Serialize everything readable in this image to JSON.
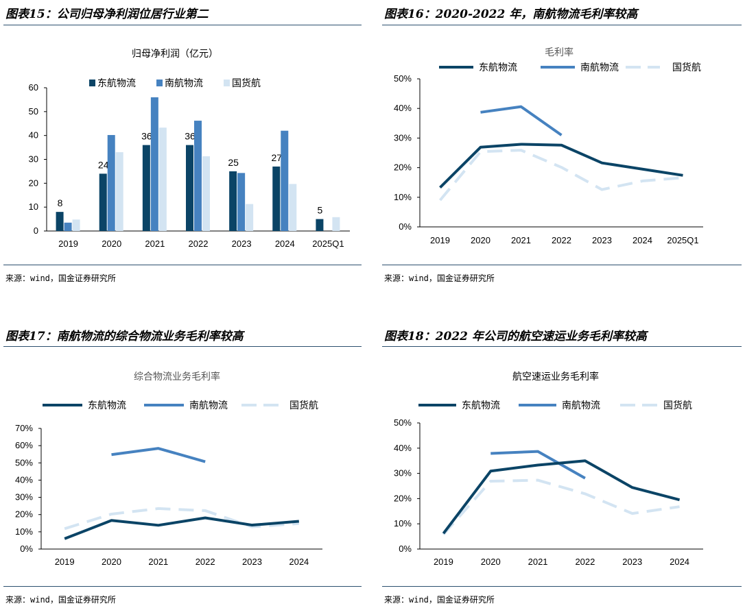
{
  "colors": {
    "east": "#0b4466",
    "south": "#4682c0",
    "cargo": "#d3e4f2",
    "rule": "#2b4f6e"
  },
  "panels": [
    {
      "title": "图表15：公司归母净利润位居行业第二",
      "source": "来源：wind，国金证券研究所"
    },
    {
      "title": "图表16：2020-2022 年，南航物流毛利率较高",
      "source": "来源：wind，国金证券研究所"
    },
    {
      "title": "图表17：南航物流的综合物流业务毛利率较高",
      "source": "来源：wind，国金证券研究所"
    },
    {
      "title": "图表18：2022 年公司的航空速运业务毛利率较高",
      "source": "来源：wind，国金证券研究所"
    }
  ],
  "chart_data": [
    {
      "type": "bar",
      "title": "归母净利润（亿元）",
      "categories": [
        "2019",
        "2020",
        "2021",
        "2022",
        "2023",
        "2024",
        "2025Q1"
      ],
      "ylim": [
        0,
        60
      ],
      "yticks": [
        "0",
        "10",
        "20",
        "30",
        "40",
        "50",
        "60"
      ],
      "series": [
        {
          "name": "东航物流",
          "values": [
            8,
            24,
            36,
            36,
            25,
            27,
            5
          ],
          "labels": [
            "8",
            "24",
            "36",
            "36",
            "25",
            "27",
            "5"
          ]
        },
        {
          "name": "南航物流",
          "values": [
            3.5,
            40.2,
            56,
            46.2,
            24.3,
            42,
            null
          ]
        },
        {
          "name": "国货航",
          "values": [
            4.8,
            33,
            43.3,
            31.3,
            11.3,
            19.7,
            5.8
          ]
        }
      ],
      "legend": "top"
    },
    {
      "type": "line",
      "title": "毛利率",
      "categories": [
        "2019",
        "2020",
        "2021",
        "2022",
        "2023",
        "2024",
        "2025Q1"
      ],
      "ylim": [
        0,
        50
      ],
      "yticks": [
        "0%",
        "10%",
        "20%",
        "30%",
        "40%",
        "50%"
      ],
      "series": [
        {
          "name": "东航物流",
          "values": [
            13.3,
            26.9,
            27.9,
            27.6,
            21.6,
            19.5,
            17.4
          ]
        },
        {
          "name": "南航物流",
          "values": [
            null,
            38.7,
            40.6,
            31.0,
            null,
            null,
            null
          ]
        },
        {
          "name": "国货航",
          "values": [
            9.0,
            25.4,
            25.9,
            20.1,
            12.6,
            15.5,
            16.6
          ]
        }
      ],
      "legend": "top"
    },
    {
      "type": "line",
      "title": "综合物流业务毛利率",
      "categories": [
        "2019",
        "2020",
        "2021",
        "2022",
        "2023",
        "2024"
      ],
      "ylim": [
        0,
        70
      ],
      "yticks": [
        "0%",
        "10%",
        "20%",
        "30%",
        "40%",
        "50%",
        "60%",
        "70%"
      ],
      "series": [
        {
          "name": "东航物流",
          "values": [
            6.0,
            16.6,
            13.8,
            18.1,
            13.9,
            16.1
          ]
        },
        {
          "name": "南航物流",
          "values": [
            null,
            54.8,
            58.4,
            50.7,
            null,
            null
          ]
        },
        {
          "name": "国货航",
          "values": [
            11.8,
            20.3,
            23.5,
            22.3,
            12.9,
            14.8
          ]
        }
      ],
      "legend": "top"
    },
    {
      "type": "line",
      "title": "航空速运业务毛利率",
      "categories": [
        "2019",
        "2020",
        "2021",
        "2022",
        "2023",
        "2024"
      ],
      "ylim": [
        0,
        50
      ],
      "yticks": [
        "0%",
        "10%",
        "20%",
        "30%",
        "40%",
        "50%"
      ],
      "series": [
        {
          "name": "东航物流",
          "values": [
            6.2,
            30.9,
            33.3,
            35.0,
            24.4,
            19.5
          ]
        },
        {
          "name": "南航物流",
          "values": [
            null,
            37.9,
            38.7,
            28.1,
            null,
            null
          ]
        },
        {
          "name": "国货航",
          "values": [
            5.8,
            26.9,
            27.3,
            21.9,
            14.1,
            16.8
          ]
        }
      ],
      "legend": "top"
    }
  ]
}
